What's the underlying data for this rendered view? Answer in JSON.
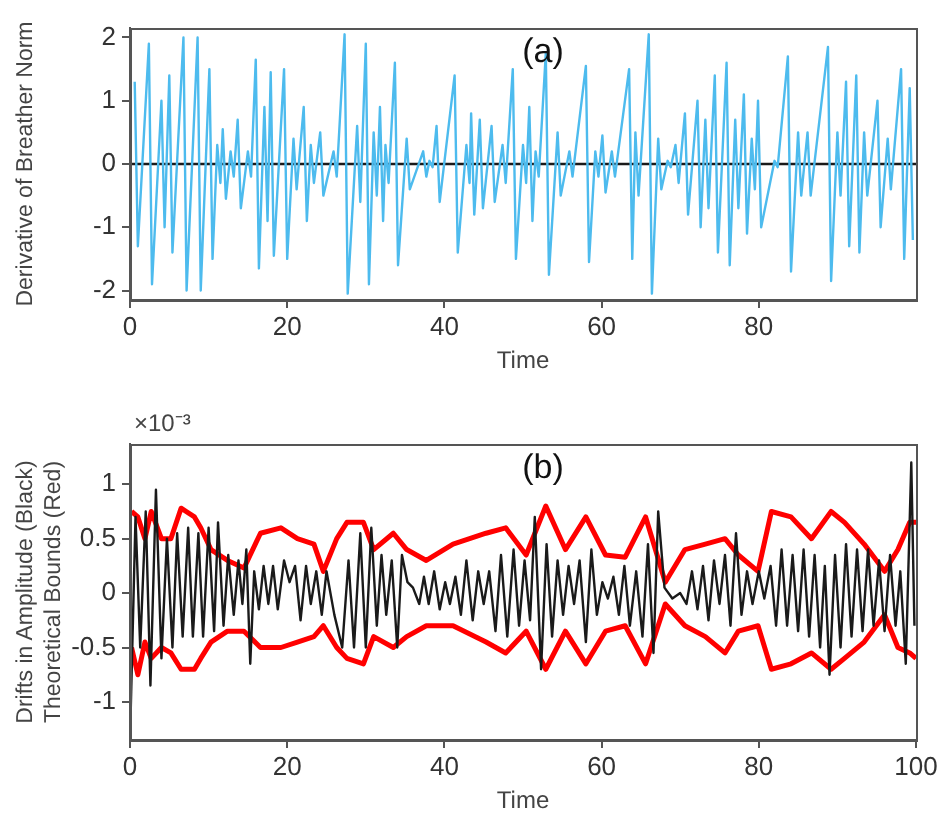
{
  "chart_data": [
    {
      "type": "line",
      "title": "(a)",
      "xlabel": "Time",
      "ylabel": "Derivative of Breather Norm",
      "xlim": [
        0,
        100
      ],
      "xticks": [
        0,
        20,
        40,
        60,
        80
      ],
      "ylim": [
        -2.15,
        2.15
      ],
      "yticks": [
        -2,
        -1,
        0,
        1,
        2
      ],
      "grid": false,
      "legend": false,
      "marker": "none",
      "series": [
        {
          "color": "#4dbbee",
          "x": [
            0.6,
            1.0,
            2.4,
            2.8,
            4,
            4.4,
            5,
            5.4,
            6.8,
            7.2,
            8.6,
            9.0,
            10.1,
            10.5,
            11.1,
            11.5,
            11.8,
            12.2,
            12.8,
            13.2,
            13.7,
            14.1,
            15,
            15.4,
            16,
            16.4,
            17.1,
            17.5,
            17.9,
            18.3,
            19.6,
            20,
            20.8,
            21.2,
            22.1,
            22.5,
            23,
            23.4,
            24.2,
            24.6,
            25.9,
            26.3,
            27.3,
            27.7,
            28.9,
            29.3,
            30,
            30.4,
            31,
            31.4,
            31.8,
            32.2,
            32.5,
            32.9,
            33.7,
            34.1,
            35.2,
            35.6,
            37.3,
            37.7,
            38.1,
            38.5,
            39,
            39.4,
            41.3,
            41.7,
            42.8,
            43.2,
            43.4,
            43.8,
            44.5,
            44.9,
            46,
            46.4,
            47.4,
            47.8,
            48.7,
            49.1,
            50,
            50.4,
            50.8,
            51.2,
            51.6,
            52,
            52.9,
            53.3,
            54.4,
            54.8,
            55.9,
            56.3,
            58,
            58.4,
            59.2,
            59.6,
            60.1,
            60.5,
            61.3,
            61.7,
            63.5,
            63.9,
            64.3,
            64.7,
            66,
            66.4,
            67.2,
            67.6,
            68.4,
            68.8,
            69.4,
            69.8,
            70.6,
            71,
            72.2,
            72.6,
            73.2,
            73.6,
            74.4,
            74.8,
            75.9,
            76.3,
            77,
            77.4,
            78.1,
            78.5,
            79.1,
            79.5,
            79.9,
            80.3,
            82,
            82.4,
            83.7,
            84.1,
            85,
            85.4,
            86.2,
            86.6,
            88.8,
            89.2,
            90,
            90.4,
            91.1,
            91.5,
            92.4,
            92.8,
            93.4,
            93.8,
            95.1,
            95.5,
            96.4,
            96.8,
            98.1,
            98.5,
            99.2,
            99.6
          ],
          "values": [
            1.3,
            -1.3,
            1.9,
            -1.9,
            1.0,
            -1.0,
            1.4,
            -1.4,
            2.0,
            -2.0,
            2.0,
            -2.0,
            1.5,
            -1.5,
            0.3,
            -0.3,
            0.55,
            -0.55,
            0.2,
            -0.2,
            0.7,
            -0.7,
            0.2,
            -0.2,
            1.65,
            -1.65,
            0.9,
            -0.9,
            1.45,
            -1.45,
            1.5,
            -1.5,
            0.4,
            -0.4,
            0.9,
            -0.9,
            0.3,
            -0.3,
            0.5,
            -0.5,
            0.2,
            -0.2,
            2.05,
            -2.05,
            0.6,
            -0.6,
            1.9,
            -1.9,
            0.5,
            -0.5,
            0.9,
            -0.9,
            0.3,
            -0.3,
            1.6,
            -1.6,
            0.4,
            -0.4,
            0.2,
            -0.2,
            0.05,
            -0.05,
            0.6,
            -0.6,
            1.4,
            -1.4,
            0.3,
            -0.3,
            0.8,
            -0.8,
            0.7,
            -0.7,
            0.6,
            -0.6,
            0.3,
            -0.3,
            1.5,
            -1.5,
            0.3,
            -0.3,
            0.9,
            -0.9,
            0.2,
            -0.2,
            1.75,
            -1.75,
            0.5,
            -0.5,
            0.2,
            -0.2,
            1.55,
            -1.55,
            0.2,
            -0.2,
            0.45,
            -0.45,
            0.2,
            -0.2,
            1.5,
            -1.5,
            0.5,
            -0.5,
            2.05,
            -2.05,
            0.4,
            -0.4,
            0.05,
            -0.05,
            0.3,
            -0.3,
            0.8,
            -0.8,
            1.0,
            -1.0,
            0.7,
            -0.7,
            1.4,
            -1.4,
            1.6,
            -1.6,
            0.7,
            -0.7,
            1.1,
            -1.1,
            0.4,
            -0.4,
            1.0,
            -1.0,
            0.05,
            -0.05,
            1.7,
            -1.7,
            0.5,
            -0.5,
            0.5,
            -0.5,
            1.85,
            -1.85,
            0.5,
            -0.5,
            1.3,
            -1.3,
            1.4,
            -1.4,
            0.5,
            -0.5,
            1.0,
            -1.0,
            0.4,
            -0.4,
            1.5,
            -1.5,
            1.2,
            -1.2
          ]
        },
        {
          "color": "#1a1a1a",
          "x": [
            0,
            100
          ],
          "values": [
            0,
            0
          ]
        }
      ]
    },
    {
      "type": "line",
      "title": "(b)",
      "xlabel": "Time",
      "ylabel": "Drifts in Amplitude (Black)\nTheoretical Bounds (Red)",
      "annotations": [
        "×10⁻³"
      ],
      "xlim": [
        0,
        100
      ],
      "xticks": [
        0,
        20,
        40,
        60,
        80,
        100
      ],
      "ylim": [
        -1.35,
        1.37
      ],
      "yticks": [
        -1,
        -0.5,
        0,
        0.5,
        1
      ],
      "grid": false,
      "legend": false,
      "marker": "none",
      "series": [
        {
          "color": "#1a1a1a",
          "x": [
            0,
            0.7,
            1.3,
            2,
            2.6,
            3.3,
            4,
            4.7,
            5.4,
            6,
            6.7,
            7.4,
            8,
            8.7,
            9.3,
            10,
            10.7,
            11.2,
            11.9,
            12.5,
            13.2,
            13.8,
            14.3,
            14.8,
            15.3,
            15.8,
            16.4,
            17,
            17.6,
            18.2,
            18.8,
            19.6,
            20.3,
            21,
            21.7,
            22.4,
            23,
            23.7,
            24.4,
            25,
            26,
            27,
            27.8,
            28.5,
            29.3,
            30,
            30.7,
            31.4,
            32,
            32.6,
            33.3,
            34,
            34.6,
            35.3,
            36,
            36.8,
            37.4,
            38,
            38.7,
            39.4,
            40.1,
            40.7,
            41.4,
            42.1,
            42.8,
            43.6,
            44.3,
            45,
            45.7,
            46.5,
            47.2,
            48,
            48.8,
            49.5,
            50.2,
            50.9,
            51.5,
            52.3,
            53,
            53.7,
            54.4,
            55.1,
            55.8,
            56.5,
            57.2,
            58,
            58.7,
            59.4,
            60.1,
            60.8,
            61.5,
            62.2,
            62.9,
            63.6,
            64.4,
            65.2,
            65.9,
            66.6,
            67.2,
            68,
            69,
            70,
            70.8,
            71.5,
            72.2,
            72.9,
            73.6,
            74.3,
            75,
            75.7,
            76.4,
            77.1,
            77.8,
            78.5,
            79.2,
            80,
            80.7,
            81.5,
            82.2,
            82.9,
            83.6,
            84.3,
            85,
            85.7,
            86.4,
            87.1,
            87.8,
            88.4,
            89,
            89.7,
            90.4,
            91.1,
            91.8,
            92.5,
            93.2,
            93.9,
            94.6,
            95.3,
            96,
            96.7,
            97.4,
            98,
            98.7,
            99.4,
            99.8
          ],
          "values": [
            -1.35,
            0.7,
            -0.5,
            0.75,
            -0.85,
            0.95,
            -0.6,
            0.5,
            -0.5,
            0.55,
            -0.4,
            0.6,
            -0.4,
            0.55,
            -0.4,
            0.6,
            -0.35,
            0.65,
            -0.3,
            0.35,
            -0.2,
            0.3,
            -0.1,
            0.4,
            -0.65,
            0.2,
            -0.15,
            0.25,
            -0.1,
            0.25,
            -0.15,
            0.3,
            0.1,
            0.25,
            -0.25,
            0.25,
            -0.1,
            0.2,
            -0.2,
            0.2,
            -0.2,
            -0.5,
            0.3,
            -0.5,
            0.55,
            -0.5,
            0.6,
            -0.3,
            0.35,
            -0.2,
            0.3,
            -0.5,
            0.35,
            0.1,
            0.05,
            -0.1,
            0.15,
            -0.1,
            0.2,
            -0.15,
            0.1,
            -0.1,
            0.15,
            -0.2,
            0.3,
            -0.25,
            0.2,
            -0.1,
            0.2,
            -0.35,
            0.35,
            -0.4,
            0.4,
            -0.3,
            0.3,
            -0.25,
            0.7,
            -0.7,
            0.45,
            -0.4,
            0.3,
            -0.2,
            0.25,
            -0.1,
            0.3,
            -0.45,
            0.4,
            -0.2,
            0.1,
            -0.05,
            0.15,
            -0.2,
            0.25,
            -0.3,
            0.2,
            -0.4,
            0.45,
            -0.55,
            0.75,
            0.05,
            -0.05,
            0,
            -0.1,
            0.2,
            -0.15,
            0.25,
            -0.25,
            0.3,
            -0.1,
            0.35,
            -0.3,
            0.55,
            -0.2,
            0.2,
            -0.1,
            0.2,
            -0.05,
            0.25,
            -0.3,
            0.4,
            -0.3,
            0.35,
            -0.35,
            0.4,
            -0.4,
            0.35,
            -0.5,
            0.25,
            -0.75,
            0.35,
            -0.5,
            0.45,
            -0.4,
            0.4,
            -0.35,
            0.4,
            -0.3,
            0.3,
            -0.35,
            0.35,
            -0.3,
            0.2,
            -0.65,
            1.2,
            -0.3
          ]
        },
        {
          "color": "#ff0000",
          "x": [
            0.2,
            1,
            1.9,
            2.7,
            4,
            5.2,
            6.5,
            8.2,
            9,
            10.3,
            12.4,
            14.5,
            16.6,
            19.2,
            21.3,
            23.4,
            24.6,
            26.3,
            27.6,
            29.7,
            31,
            33.5,
            35.2,
            37.7,
            41.1,
            45.3,
            47.8,
            50.4,
            52.9,
            55.4,
            58,
            60.5,
            63,
            65.6,
            68.1,
            70.6,
            73.2,
            75.7,
            77.4,
            79.9,
            81.6,
            84.1,
            86.7,
            89.2,
            90.9,
            93.4,
            96,
            97.7,
            99.2,
            100
          ],
          "values": [
            0.75,
            0.7,
            0.5,
            0.75,
            0.5,
            0.5,
            0.78,
            0.7,
            0.6,
            0.4,
            0.3,
            0.23,
            0.55,
            0.6,
            0.5,
            0.45,
            0.2,
            0.5,
            0.65,
            0.65,
            0.4,
            0.55,
            0.4,
            0.3,
            0.45,
            0.55,
            0.6,
            0.35,
            0.8,
            0.4,
            0.7,
            0.35,
            0.33,
            0.7,
            0.1,
            0.4,
            0.45,
            0.5,
            0.35,
            0.2,
            0.75,
            0.7,
            0.5,
            0.75,
            0.65,
            0.45,
            0.2,
            0.4,
            0.65,
            0.65
          ]
        },
        {
          "color": "#ff0000",
          "x": [
            0.2,
            1,
            1.9,
            2.7,
            4,
            5.2,
            6.5,
            8.2,
            9,
            10.3,
            12.4,
            14.5,
            16.6,
            19.2,
            21.3,
            23.4,
            24.6,
            26.3,
            27.6,
            29.7,
            31,
            33.5,
            35.2,
            37.7,
            41.1,
            45.3,
            47.8,
            50.4,
            52.9,
            55.4,
            58,
            60.5,
            63,
            65.6,
            68.1,
            70.6,
            73.2,
            75.7,
            77.4,
            79.9,
            81.6,
            84.1,
            86.7,
            89.2,
            90.9,
            93.4,
            96,
            97.7,
            99.2,
            100
          ],
          "values": [
            -0.5,
            -0.75,
            -0.45,
            -0.6,
            -0.5,
            -0.55,
            -0.7,
            -0.7,
            -0.6,
            -0.45,
            -0.35,
            -0.35,
            -0.5,
            -0.5,
            -0.45,
            -0.4,
            -0.3,
            -0.5,
            -0.6,
            -0.65,
            -0.4,
            -0.5,
            -0.4,
            -0.3,
            -0.3,
            -0.45,
            -0.55,
            -0.35,
            -0.7,
            -0.35,
            -0.65,
            -0.35,
            -0.3,
            -0.65,
            -0.1,
            -0.3,
            -0.4,
            -0.55,
            -0.35,
            -0.3,
            -0.7,
            -0.65,
            -0.55,
            -0.7,
            -0.6,
            -0.45,
            -0.2,
            -0.5,
            -0.55,
            -0.6
          ]
        }
      ]
    }
  ]
}
